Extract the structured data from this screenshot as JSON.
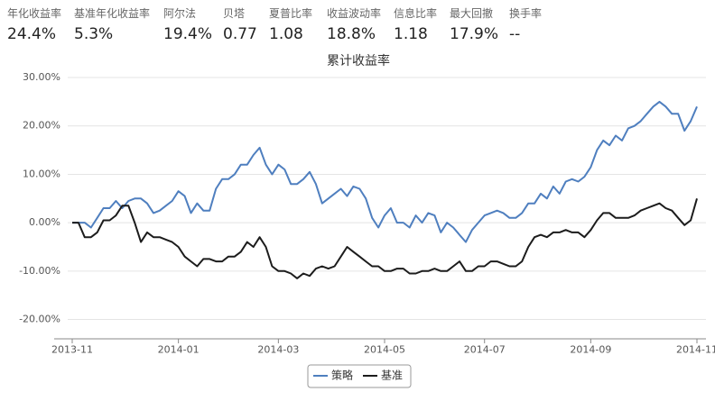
{
  "stats": [
    {
      "label": "年化收益率",
      "value": "24.4%"
    },
    {
      "label": "基准年化收益率",
      "value": "5.3%"
    },
    {
      "label": "阿尔法",
      "value": "19.4%"
    },
    {
      "label": "贝塔",
      "value": "0.77"
    },
    {
      "label": "夏普比率",
      "value": "1.08"
    },
    {
      "label": "收益波动率",
      "value": "18.8%"
    },
    {
      "label": "信息比率",
      "value": "1.18"
    },
    {
      "label": "最大回撤",
      "value": "17.9%"
    },
    {
      "label": "换手率",
      "value": "--"
    }
  ],
  "chart_data": {
    "type": "line",
    "title": "累计收益率",
    "categories": [
      "2013-11",
      null,
      null,
      null,
      null,
      null,
      null,
      null,
      null,
      null,
      null,
      null,
      null,
      null,
      null,
      null,
      null,
      "2014-01",
      null,
      null,
      null,
      null,
      null,
      null,
      null,
      null,
      null,
      null,
      null,
      null,
      null,
      null,
      null,
      "2014-03",
      null,
      null,
      null,
      null,
      null,
      null,
      null,
      null,
      null,
      null,
      null,
      null,
      null,
      null,
      null,
      null,
      "2014-05",
      null,
      null,
      null,
      null,
      null,
      null,
      null,
      null,
      null,
      null,
      null,
      null,
      null,
      null,
      null,
      "2014-07",
      null,
      null,
      null,
      null,
      null,
      null,
      null,
      null,
      null,
      null,
      null,
      null,
      null,
      null,
      null,
      null,
      "2014-09",
      null,
      null,
      null,
      null,
      null,
      null,
      null,
      null,
      null,
      null,
      null,
      null,
      null,
      null,
      null,
      null,
      "2014-11"
    ],
    "series": [
      {
        "name": "策略",
        "color": "#4f7fbf",
        "values": [
          0,
          0,
          0,
          -1,
          1,
          3,
          3,
          4.5,
          3,
          4.5,
          5,
          5,
          4,
          2,
          2.5,
          3.5,
          4.5,
          6.5,
          5.5,
          2,
          4,
          2.5,
          2.5,
          7,
          9,
          9,
          10,
          12,
          12,
          14,
          15.5,
          12,
          10,
          12,
          11,
          8,
          8,
          9,
          10.5,
          8,
          4,
          5,
          6,
          7,
          5.5,
          7.5,
          7,
          5,
          1,
          -1,
          1.5,
          3,
          0,
          0,
          -1,
          1.5,
          0,
          2,
          1.5,
          -2,
          0,
          -1,
          -2.5,
          -4,
          -1.5,
          0,
          1.5,
          2,
          2.5,
          2,
          1,
          1,
          2,
          4,
          4,
          6,
          5,
          7.5,
          6,
          8.5,
          9,
          8.5,
          9.5,
          11.5,
          15,
          17,
          16,
          18,
          17,
          19.5,
          20,
          21,
          22.5,
          24,
          25,
          24,
          22.5,
          22.5,
          19,
          21,
          24
        ]
      },
      {
        "name": "基准",
        "color": "#1c1c1c",
        "values": [
          0,
          0,
          -3,
          -3,
          -2,
          0.5,
          0.5,
          1.5,
          3.5,
          3.5,
          0,
          -4,
          -2,
          -3,
          -3,
          -3.5,
          -4,
          -5,
          -7,
          -8,
          -9,
          -7.5,
          -7.5,
          -8,
          -8,
          -7,
          -7,
          -6,
          -4,
          -5,
          -3,
          -5,
          -9,
          -10,
          -10,
          -10.5,
          -11.5,
          -10.5,
          -11,
          -9.5,
          -9,
          -9.5,
          -9,
          -7,
          -5,
          -6,
          -7,
          -8,
          -9,
          -9,
          -10,
          -10,
          -9.5,
          -9.5,
          -10.5,
          -10.5,
          -10,
          -10,
          -9.5,
          -10,
          -10,
          -9,
          -8,
          -10,
          -10,
          -9,
          -9,
          -8,
          -8,
          -8.5,
          -9,
          -9,
          -8,
          -5,
          -3,
          -2.5,
          -3,
          -2,
          -2,
          -1.5,
          -2,
          -2,
          -3,
          -1.5,
          0.5,
          2,
          2,
          1,
          1,
          1,
          1.5,
          2.5,
          3,
          3.5,
          4,
          3,
          2.5,
          1,
          -0.5,
          0.5,
          5
        ]
      }
    ],
    "ylim": [
      -24,
      31.5
    ],
    "yticks": [
      {
        "value": -20,
        "label": "-20.00%"
      },
      {
        "value": -10,
        "label": "-10.00%"
      },
      {
        "value": 0,
        "label": "0.00%"
      },
      {
        "value": 10,
        "label": "10.00%"
      },
      {
        "value": 20,
        "label": "20.00%"
      },
      {
        "value": 30,
        "label": "30.00%"
      }
    ],
    "grid": true,
    "legend": "bottom"
  }
}
